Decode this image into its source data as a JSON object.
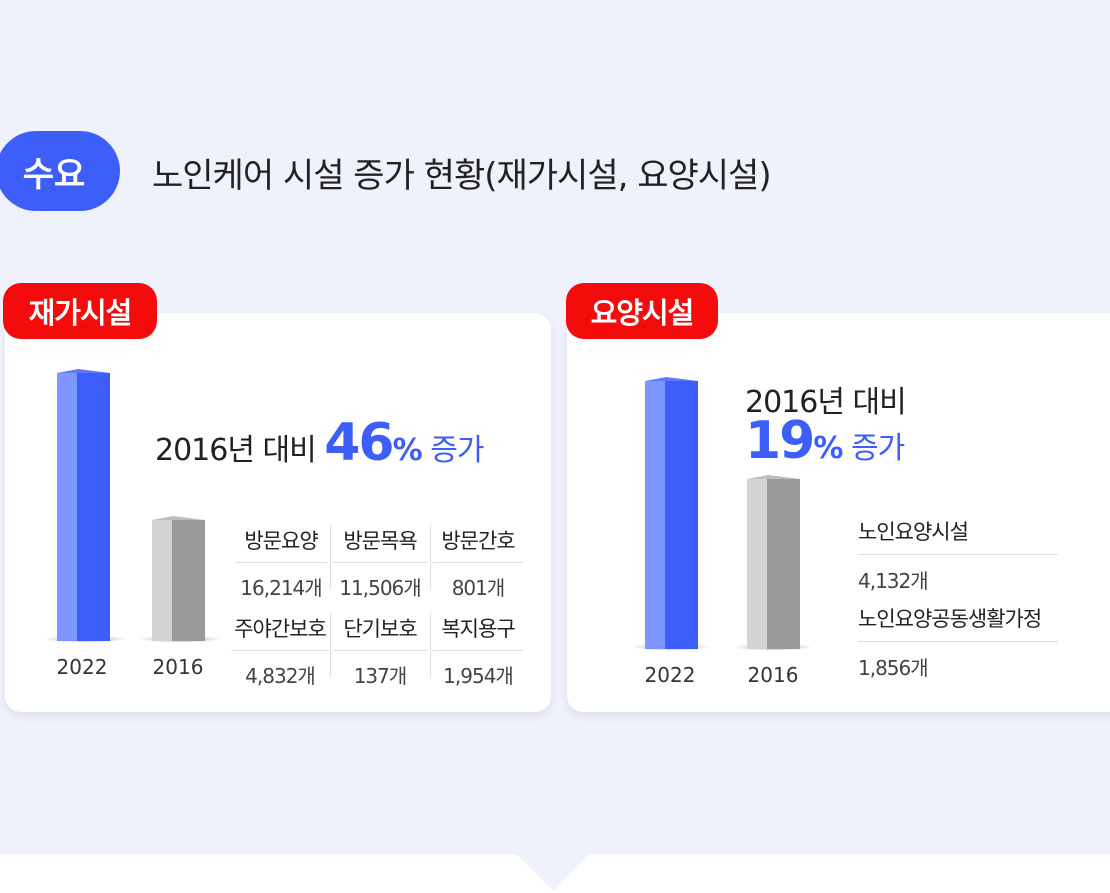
{
  "header": {
    "badge": "수요",
    "title": "노인케어 시설 증가 현황(재가시설, 요양시설)"
  },
  "home_care": {
    "tag": "재가시설",
    "compare_prefix": "2016년 대비",
    "percent_value": "46",
    "percent_sign": "%",
    "increase_label": "증가",
    "years": [
      "2022",
      "2016"
    ],
    "stats": [
      {
        "label": "방문요양",
        "value": "16,214개"
      },
      {
        "label": "방문목욕",
        "value": "11,506개"
      },
      {
        "label": "방문간호",
        "value": "801개"
      },
      {
        "label": "주야간보호",
        "value": "4,832개"
      },
      {
        "label": "단기보호",
        "value": "137개"
      },
      {
        "label": "복지용구",
        "value": "1,954개"
      }
    ]
  },
  "nursing": {
    "tag": "요양시설",
    "compare_prefix": "2016년 대비",
    "percent_value": "19",
    "percent_sign": "%",
    "increase_label": "증가",
    "years": [
      "2022",
      "2016"
    ],
    "stats": [
      {
        "label": "노인요양시설",
        "value": "4,132개"
      },
      {
        "label": "노인요양공동생활가정",
        "value": "1,856개"
      }
    ]
  },
  "colors": {
    "accent_blue": "#3d5ef8",
    "tag_red": "#f40b0b",
    "bar_gray": "#9a9a9a"
  }
}
